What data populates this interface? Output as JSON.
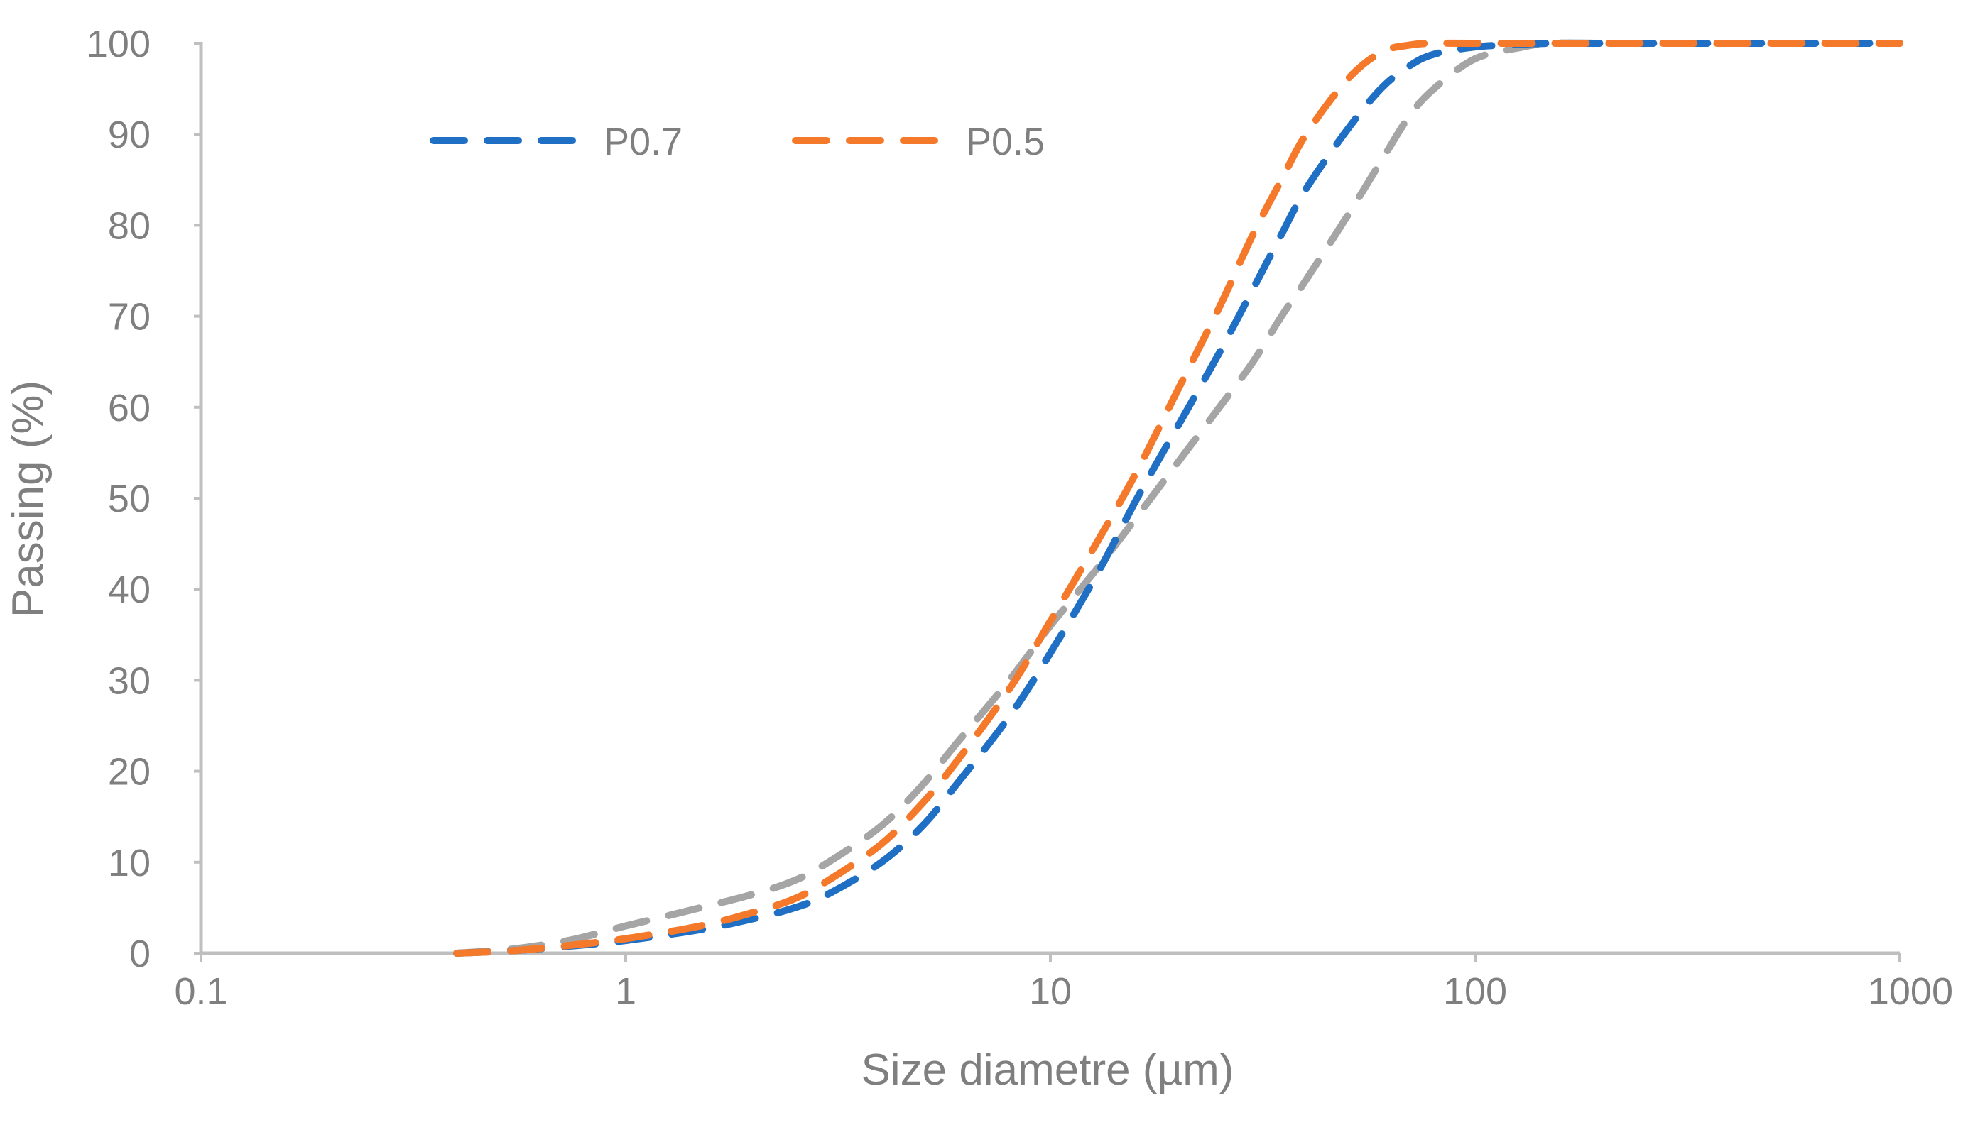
{
  "chart_data": {
    "type": "line",
    "title": "",
    "xlabel": "Size diametre (µm)",
    "ylabel": "Passing (%)",
    "x_scale": "log",
    "xlim": [
      0.1,
      1000
    ],
    "ylim": [
      0,
      100
    ],
    "x_ticks": [
      "0.1",
      "1",
      "10",
      "100",
      "1000"
    ],
    "y_ticks": [
      "0",
      "10",
      "20",
      "30",
      "40",
      "50",
      "60",
      "70",
      "80",
      "90",
      "100"
    ],
    "grid": false,
    "legend_position": "top-left",
    "colors": {
      "axis": "#bfbfbf",
      "text": "#7f7f7f"
    },
    "series": [
      {
        "name": "P0.7",
        "color": "#1f6fc5",
        "line_style": "dashed",
        "x": [
          0.4,
          0.55,
          0.75,
          1,
          1.5,
          2,
          2.5,
          3,
          4,
          5,
          6,
          8,
          10,
          13,
          16,
          20,
          25,
          30,
          35,
          40,
          50,
          60,
          70,
          80,
          100,
          130,
          150,
          200,
          300,
          500,
          1000
        ],
        "y": [
          0,
          0.3,
          0.8,
          1.4,
          2.6,
          3.8,
          5,
          6.5,
          10,
          14,
          18.5,
          26,
          33,
          42,
          50,
          58,
          66,
          73,
          79,
          84,
          90.5,
          95,
          97.5,
          98.8,
          99.6,
          99.9,
          100,
          100,
          100,
          100,
          100
        ]
      },
      {
        "name": "P0.5",
        "color": "#f5792a",
        "line_style": "dashed",
        "x": [
          0.4,
          0.55,
          0.75,
          1,
          1.5,
          2,
          2.5,
          3,
          4,
          5,
          6,
          8,
          10,
          13,
          16,
          20,
          25,
          30,
          35,
          40,
          50,
          60,
          70,
          80,
          100,
          130,
          150,
          200,
          300,
          500,
          1000
        ],
        "y": [
          0,
          0.3,
          0.9,
          1.6,
          3,
          4.5,
          6,
          8,
          12,
          16.5,
          21,
          29,
          36.5,
          45.5,
          53,
          62,
          71,
          79,
          85,
          90,
          96,
          99,
          99.8,
          100,
          100,
          100,
          100,
          100,
          100,
          100,
          100
        ]
      },
      {
        "color": "#a5a5a5",
        "line_style": "dashed",
        "x": [
          0.4,
          0.55,
          0.75,
          1,
          1.5,
          2,
          2.5,
          3,
          4,
          5,
          6,
          8,
          10,
          13,
          16,
          20,
          25,
          30,
          35,
          40,
          50,
          60,
          70,
          80,
          100,
          130,
          150,
          200,
          300,
          500,
          1000
        ],
        "y": [
          0,
          0.5,
          1.5,
          3,
          5,
          6.5,
          8,
          10,
          14,
          18.5,
          23,
          30,
          36,
          42.5,
          48,
          54,
          60,
          65,
          70,
          74,
          81,
          87,
          92,
          95,
          98.3,
          99.6,
          100,
          100,
          100,
          100,
          100
        ]
      }
    ]
  }
}
